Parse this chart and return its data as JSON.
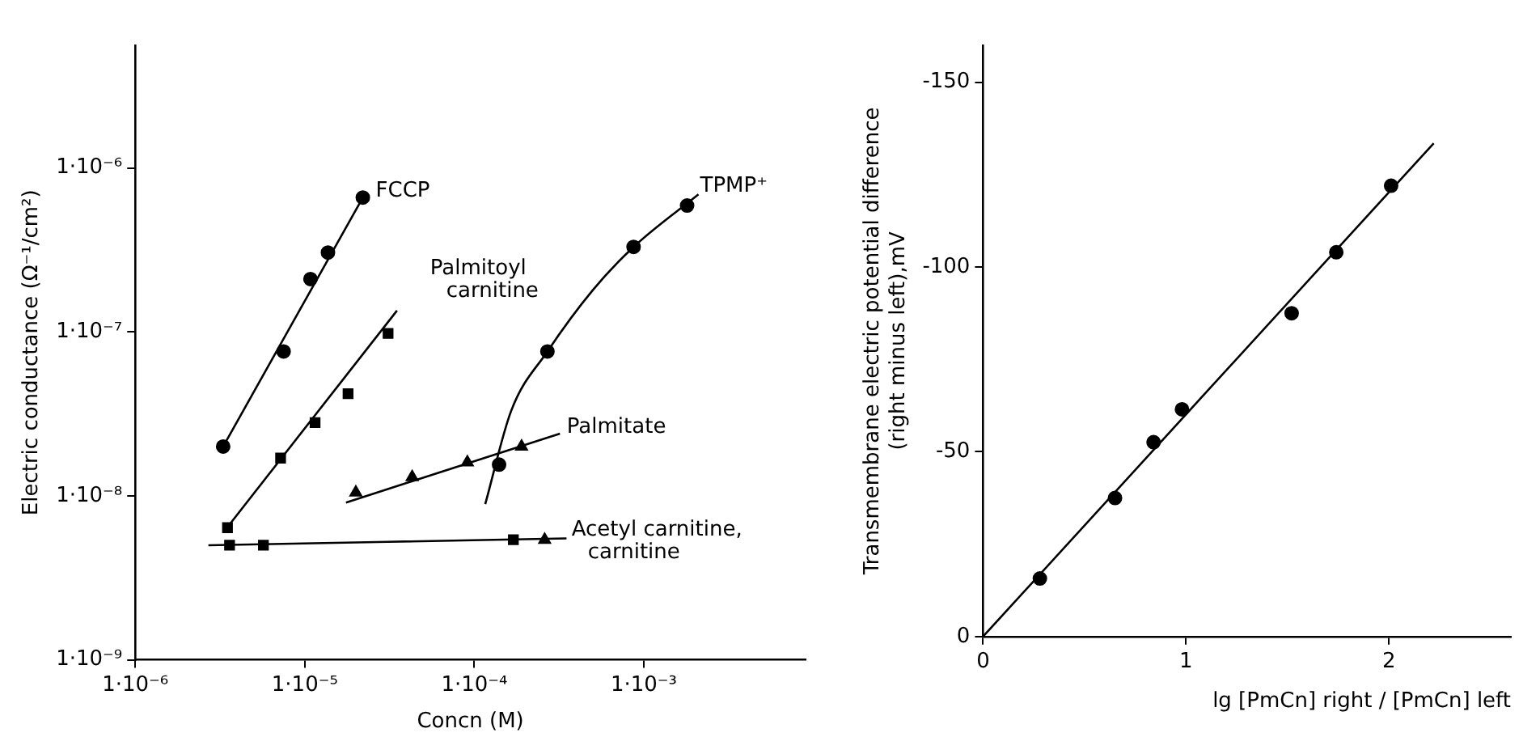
{
  "chart_data": [
    {
      "type": "scatter",
      "xlabel": "Concn (M)",
      "ylabel": "Electric conductance (Ω⁻¹/cm²)",
      "log": "xy",
      "grid": false,
      "legend": false,
      "xlim": [
        1e-06,
        0.009
      ],
      "ylim": [
        1e-09,
        5.6e-06
      ],
      "xticks": [
        {
          "value": 1e-06,
          "label": "1·10⁻⁶"
        },
        {
          "value": 1e-05,
          "label": "1·10⁻⁵"
        },
        {
          "value": 0.0001,
          "label": "1·10⁻⁴"
        },
        {
          "value": 0.001,
          "label": "1·10⁻³"
        }
      ],
      "yticks": [
        {
          "value": 1e-09,
          "label": "1·10⁻⁹"
        },
        {
          "value": 1e-08,
          "label": "1·10⁻⁸"
        },
        {
          "value": 1e-07,
          "label": "1·10⁻⁷"
        },
        {
          "value": 1e-06,
          "label": "1·10⁻⁶"
        }
      ],
      "series": [
        {
          "name": "FCCP",
          "type": "scatter",
          "marker": "circle",
          "color": "#000000",
          "x": [
            3.3e-06,
            7.5e-06,
            1.08e-05,
            1.37e-05,
            2.2e-05
          ],
          "values": [
            2e-08,
            7.6e-08,
            2.1e-07,
            3.05e-07,
            6.6e-07
          ]
        },
        {
          "type": "line",
          "marker": "none",
          "color": "#000000",
          "x": [
            3.3e-06,
            2.2e-05
          ],
          "values": [
            2e-08,
            6.6e-07
          ]
        },
        {
          "name": "Palmitoyl carnitine",
          "type": "scatter",
          "marker": "square",
          "color": "#000000",
          "x": [
            3.5e-06,
            7.2e-06,
            1.15e-05,
            1.8e-05,
            3.1e-05
          ],
          "values": [
            6.4e-09,
            1.7e-08,
            2.8e-08,
            4.2e-08,
            9.8e-08
          ]
        },
        {
          "type": "line",
          "marker": "none",
          "color": "#000000",
          "x": [
            3.6e-06,
            3.5e-05
          ],
          "values": [
            6.7e-09,
            1.35e-07
          ]
        },
        {
          "name": "TPMP⁺",
          "type": "scatter",
          "marker": "circle",
          "color": "#000000",
          "x": [
            0.00014,
            0.00027,
            0.00087,
            0.0018
          ],
          "values": [
            1.55e-08,
            7.6e-08,
            3.3e-07,
            5.9e-07
          ]
        },
        {
          "type": "line",
          "marker": "none",
          "color": "#000000",
          "x": [
            0.000116,
            0.000165,
            0.00027,
            0.0005,
            0.00087,
            0.0021
          ],
          "values": [
            8.9e-09,
            3.3e-08,
            7.6e-08,
            1.8e-07,
            3.3e-07,
            6.9e-07
          ]
        },
        {
          "name": "Palmitate",
          "type": "scatter",
          "marker": "triangle",
          "color": "#000000",
          "x": [
            2e-05,
            4.3e-05,
            9.1e-05,
            0.00019
          ],
          "values": [
            1.05e-08,
            1.3e-08,
            1.6e-08,
            2e-08
          ]
        },
        {
          "type": "line",
          "marker": "none",
          "color": "#000000",
          "x": [
            1.75e-05,
            0.00032
          ],
          "values": [
            9.1e-09,
            2.4e-08
          ]
        },
        {
          "name": "Acetyl carnitine, carnitine",
          "type": "scatter",
          "marker": "square",
          "color": "#000000",
          "x": [
            3.6e-06,
            5.7e-06,
            0.00017
          ],
          "values": [
            5e-09,
            5e-09,
            5.4e-09
          ]
        },
        {
          "type": "scatter",
          "marker": "triangle",
          "color": "#000000",
          "x": [
            0.00026
          ],
          "values": [
            5.4e-09
          ]
        },
        {
          "type": "line",
          "marker": "none",
          "color": "#000000",
          "x": [
            2.7e-06,
            0.00035
          ],
          "values": [
            5e-09,
            5.5e-09
          ]
        }
      ]
    },
    {
      "type": "scatter",
      "xlabel": "lg [PmCn] right / [PmCn] left",
      "ylabel": "Transmembrane electric potential difference (right minus left),mV",
      "grid": false,
      "legend": false,
      "xlim": [
        0,
        2.6
      ],
      "ylim": [
        0,
        -160
      ],
      "xticks": [
        0,
        1,
        2
      ],
      "yticks": [
        0,
        -50,
        -100,
        -150
      ],
      "series": [
        {
          "type": "scatter",
          "marker": "circle",
          "color": "#000000",
          "x": [
            0.28,
            0.65,
            0.84,
            0.98,
            1.52,
            1.74,
            2.01
          ],
          "values": [
            -15.7,
            -37.5,
            -52.6,
            -61.5,
            -87.5,
            -104,
            -122
          ]
        },
        {
          "type": "line",
          "marker": "none",
          "color": "#000000",
          "x": [
            0,
            2.22
          ],
          "values": [
            0,
            -133.5
          ]
        }
      ]
    }
  ]
}
